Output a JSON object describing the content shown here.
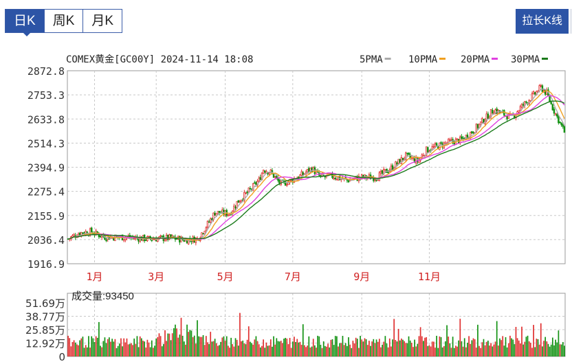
{
  "tabs": [
    {
      "label": "日K",
      "active": true
    },
    {
      "label": "周K",
      "active": false
    },
    {
      "label": "月K",
      "active": false
    }
  ],
  "expand_button": "拉长K线",
  "header": {
    "title": "COMEX黄金[GC00Y] 2024-11-14 18:08",
    "legend": [
      {
        "label": "5PMA",
        "color": "#aaaaaa"
      },
      {
        "label": "10PMA",
        "color": "#f0a020"
      },
      {
        "label": "20PMA",
        "color": "#e040e0"
      },
      {
        "label": "30PMA",
        "color": "#1a7a1a"
      }
    ]
  },
  "volume_panel": {
    "label": "成交量:93450",
    "y_ticks": [
      "51.69万",
      "38.77万",
      "25.85万",
      "12.92万",
      "0"
    ]
  },
  "colors": {
    "up": "#e03030",
    "down": "#139213",
    "grid": "#c8c8c8",
    "month_label": "#d02020"
  },
  "chart_data": {
    "type": "candlestick",
    "y_ticks": [
      "2872.8",
      "2753.3",
      "2633.8",
      "2514.3",
      "2394.9",
      "2275.4",
      "2155.9",
      "2036.4",
      "1916.9"
    ],
    "ylim": [
      1916.9,
      2872.8
    ],
    "x_ticks": [
      "1月",
      "3月",
      "5月",
      "7月",
      "9月",
      "11月"
    ],
    "series_names": [
      "5PMA",
      "10PMA",
      "20PMA",
      "30PMA"
    ],
    "keypoints": [
      [
        0,
        2040
      ],
      [
        8,
        2070
      ],
      [
        15,
        2075
      ],
      [
        25,
        2050
      ],
      [
        40,
        2048
      ],
      [
        55,
        2040
      ],
      [
        70,
        2045
      ],
      [
        80,
        2035
      ],
      [
        88,
        2040
      ],
      [
        92,
        2080
      ],
      [
        100,
        2170
      ],
      [
        110,
        2165
      ],
      [
        115,
        2220
      ],
      [
        125,
        2290
      ],
      [
        130,
        2330
      ],
      [
        133,
        2385
      ],
      [
        138,
        2370
      ],
      [
        145,
        2310
      ],
      [
        152,
        2330
      ],
      [
        160,
        2360
      ],
      [
        166,
        2390
      ],
      [
        172,
        2345
      ],
      [
        180,
        2350
      ],
      [
        190,
        2330
      ],
      [
        200,
        2345
      ],
      [
        210,
        2345
      ],
      [
        220,
        2390
      ],
      [
        230,
        2450
      ],
      [
        238,
        2425
      ],
      [
        244,
        2480
      ],
      [
        252,
        2500
      ],
      [
        260,
        2520
      ],
      [
        268,
        2530
      ],
      [
        275,
        2570
      ],
      [
        282,
        2620
      ],
      [
        290,
        2680
      ],
      [
        296,
        2660
      ],
      [
        302,
        2640
      ],
      [
        308,
        2690
      ],
      [
        314,
        2730
      ],
      [
        318,
        2760
      ],
      [
        322,
        2790
      ],
      [
        326,
        2760
      ],
      [
        330,
        2690
      ],
      [
        334,
        2630
      ],
      [
        338,
        2570
      ]
    ],
    "n_bars": 339,
    "x_tick_bars": [
      18,
      60,
      107,
      153,
      200,
      246
    ]
  }
}
